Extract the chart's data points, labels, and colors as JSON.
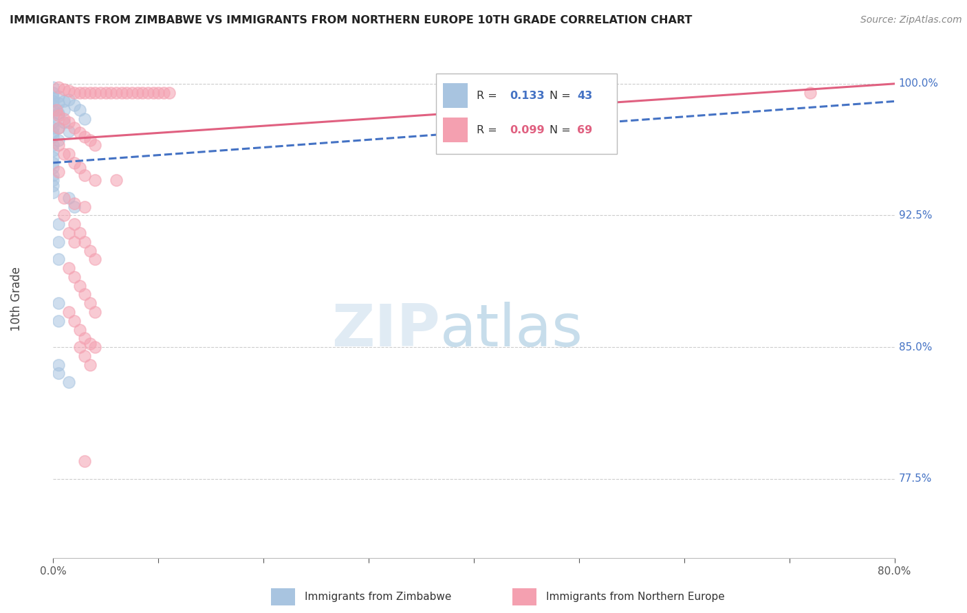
{
  "title": "IMMIGRANTS FROM ZIMBABWE VS IMMIGRANTS FROM NORTHERN EUROPE 10TH GRADE CORRELATION CHART",
  "source": "Source: ZipAtlas.com",
  "ylabel": "10th Grade",
  "y_ticks": [
    77.5,
    85.0,
    92.5,
    100.0
  ],
  "y_tick_labels": [
    "77.5%",
    "85.0%",
    "92.5%",
    "100.0%"
  ],
  "x_range": [
    0.0,
    80.0
  ],
  "y_range": [
    73.0,
    102.5
  ],
  "legend": {
    "blue_r": "0.133",
    "blue_n": "43",
    "pink_r": "0.099",
    "pink_n": "69"
  },
  "blue_color": "#a8c4e0",
  "blue_line_color": "#4472c4",
  "pink_color": "#f4a0b0",
  "pink_line_color": "#e06080",
  "blue_scatter": [
    [
      0.0,
      99.8
    ],
    [
      0.0,
      99.5
    ],
    [
      0.0,
      99.2
    ],
    [
      0.0,
      99.0
    ],
    [
      0.0,
      98.8
    ],
    [
      0.0,
      98.5
    ],
    [
      0.0,
      98.2
    ],
    [
      0.0,
      97.8
    ],
    [
      0.0,
      97.5
    ],
    [
      0.0,
      97.2
    ],
    [
      0.0,
      97.0
    ],
    [
      0.0,
      96.5
    ],
    [
      0.0,
      96.2
    ],
    [
      0.0,
      95.8
    ],
    [
      0.0,
      95.5
    ],
    [
      0.0,
      95.2
    ],
    [
      0.0,
      94.8
    ],
    [
      0.0,
      94.5
    ],
    [
      0.0,
      94.2
    ],
    [
      0.0,
      93.8
    ],
    [
      0.5,
      99.3
    ],
    [
      0.5,
      98.9
    ],
    [
      0.5,
      98.3
    ],
    [
      0.5,
      97.5
    ],
    [
      0.5,
      96.8
    ],
    [
      1.0,
      99.0
    ],
    [
      1.0,
      98.5
    ],
    [
      1.0,
      97.8
    ],
    [
      1.5,
      99.1
    ],
    [
      1.5,
      97.3
    ],
    [
      2.0,
      98.8
    ],
    [
      2.5,
      98.5
    ],
    [
      3.0,
      98.0
    ],
    [
      1.5,
      93.5
    ],
    [
      2.0,
      93.0
    ],
    [
      0.5,
      92.0
    ],
    [
      0.5,
      91.0
    ],
    [
      0.5,
      90.0
    ],
    [
      0.5,
      87.5
    ],
    [
      0.5,
      86.5
    ],
    [
      0.5,
      84.0
    ],
    [
      1.5,
      83.0
    ],
    [
      0.5,
      83.5
    ]
  ],
  "pink_scatter": [
    [
      0.5,
      99.8
    ],
    [
      1.0,
      99.7
    ],
    [
      1.5,
      99.6
    ],
    [
      2.0,
      99.5
    ],
    [
      2.5,
      99.5
    ],
    [
      3.0,
      99.5
    ],
    [
      3.5,
      99.5
    ],
    [
      4.0,
      99.5
    ],
    [
      4.5,
      99.5
    ],
    [
      5.0,
      99.5
    ],
    [
      5.5,
      99.5
    ],
    [
      6.0,
      99.5
    ],
    [
      6.5,
      99.5
    ],
    [
      7.0,
      99.5
    ],
    [
      7.5,
      99.5
    ],
    [
      8.0,
      99.5
    ],
    [
      8.5,
      99.5
    ],
    [
      9.0,
      99.5
    ],
    [
      9.5,
      99.5
    ],
    [
      10.0,
      99.5
    ],
    [
      10.5,
      99.5
    ],
    [
      11.0,
      99.5
    ],
    [
      72.0,
      99.5
    ],
    [
      0.3,
      98.5
    ],
    [
      0.5,
      98.2
    ],
    [
      1.0,
      98.0
    ],
    [
      1.5,
      97.8
    ],
    [
      2.0,
      97.5
    ],
    [
      2.5,
      97.2
    ],
    [
      3.0,
      97.0
    ],
    [
      3.5,
      96.8
    ],
    [
      4.0,
      96.5
    ],
    [
      1.5,
      96.0
    ],
    [
      2.0,
      95.5
    ],
    [
      2.5,
      95.2
    ],
    [
      3.0,
      94.8
    ],
    [
      4.0,
      94.5
    ],
    [
      6.0,
      94.5
    ],
    [
      1.0,
      93.5
    ],
    [
      2.0,
      93.2
    ],
    [
      1.0,
      92.5
    ],
    [
      2.0,
      92.0
    ],
    [
      2.5,
      91.5
    ],
    [
      3.0,
      91.0
    ],
    [
      3.5,
      90.5
    ],
    [
      4.0,
      90.0
    ],
    [
      1.5,
      91.5
    ],
    [
      2.0,
      91.0
    ],
    [
      1.5,
      89.5
    ],
    [
      2.0,
      89.0
    ],
    [
      2.5,
      88.5
    ],
    [
      3.0,
      88.0
    ],
    [
      3.5,
      87.5
    ],
    [
      4.0,
      87.0
    ],
    [
      1.5,
      87.0
    ],
    [
      2.0,
      86.5
    ],
    [
      2.5,
      86.0
    ],
    [
      3.0,
      85.5
    ],
    [
      3.5,
      85.2
    ],
    [
      4.0,
      85.0
    ],
    [
      0.5,
      96.5
    ],
    [
      1.0,
      96.0
    ],
    [
      3.0,
      93.0
    ],
    [
      2.5,
      85.0
    ],
    [
      3.0,
      84.5
    ],
    [
      3.5,
      84.0
    ],
    [
      3.0,
      78.5
    ],
    [
      0.5,
      97.5
    ],
    [
      0.5,
      95.0
    ]
  ],
  "blue_trend": [
    0.0,
    80.0,
    95.5,
    99.0
  ],
  "pink_trend": [
    0.0,
    80.0,
    96.8,
    100.0
  ]
}
